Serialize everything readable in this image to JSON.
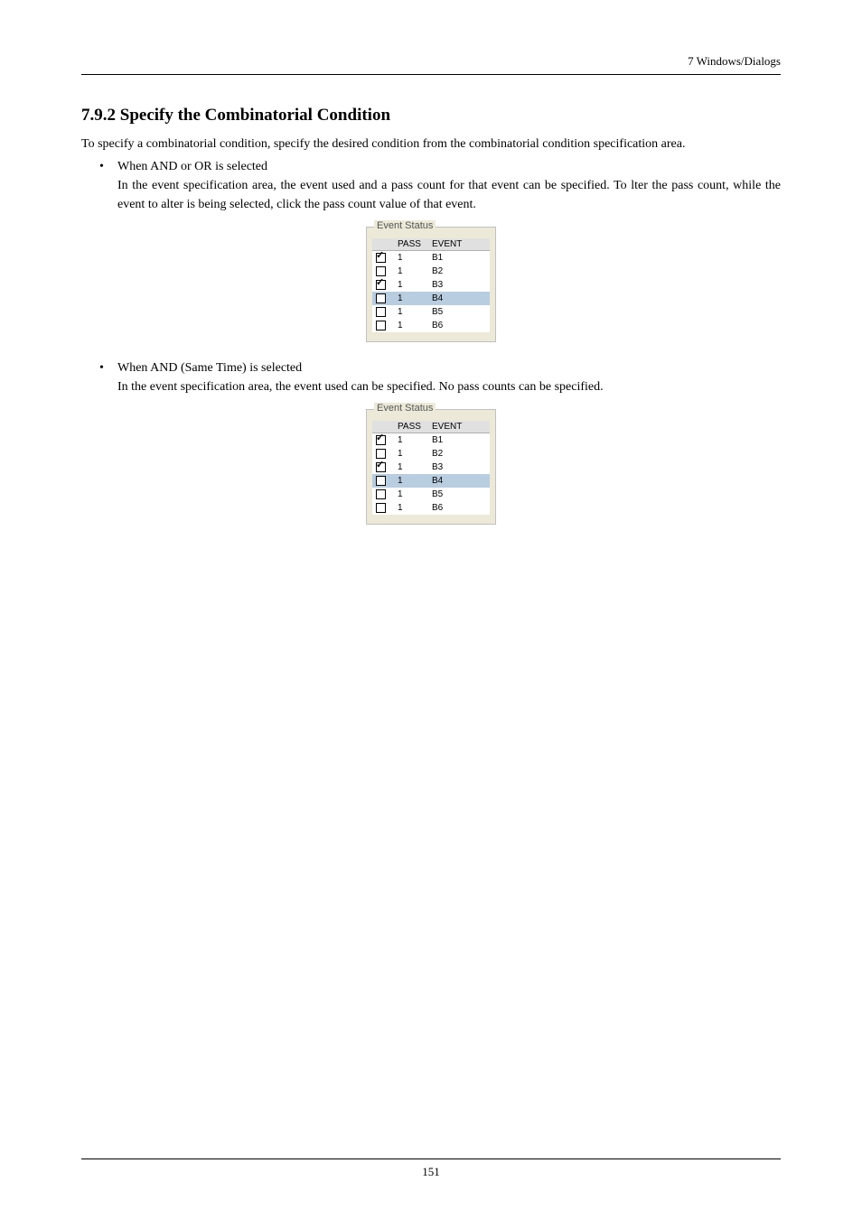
{
  "running_head": "7  Windows/Dialogs",
  "section_title": "7.9.2 Specify the Combinatorial Condition",
  "intro_para": "To specify a combinatorial condition, specify the desired condition from the combinatorial condition specification area.",
  "bullet1": {
    "head": "When AND or OR is selected",
    "body": "In the event specification area, the event used and a pass count for that event can be specified. To lter the pass count, while the event to alter is being selected, click the pass count value of that event."
  },
  "bullet2": {
    "head": "When AND (Same Time) is selected",
    "body": "In the event specification area, the event used can be specified. No pass counts can be specified."
  },
  "groupbox_title": "Event Status",
  "headers": {
    "pass": "PASS",
    "event": "EVENT"
  },
  "rows": [
    {
      "checked": true,
      "pass": "1",
      "event": "B1",
      "selected": false
    },
    {
      "checked": false,
      "pass": "1",
      "event": "B2",
      "selected": false
    },
    {
      "checked": true,
      "pass": "1",
      "event": "B3",
      "selected": false
    },
    {
      "checked": false,
      "pass": "1",
      "event": "B4",
      "selected": true
    },
    {
      "checked": false,
      "pass": "1",
      "event": "B5",
      "selected": false
    },
    {
      "checked": false,
      "pass": "1",
      "event": "B6",
      "selected": false
    }
  ],
  "page_number": "151",
  "colors": {
    "background": "#ffffff",
    "text": "#000000",
    "dialog_bg": "#ece9d8",
    "selected_row": "#b8cde0",
    "header_bg": "#e0e0e0"
  }
}
